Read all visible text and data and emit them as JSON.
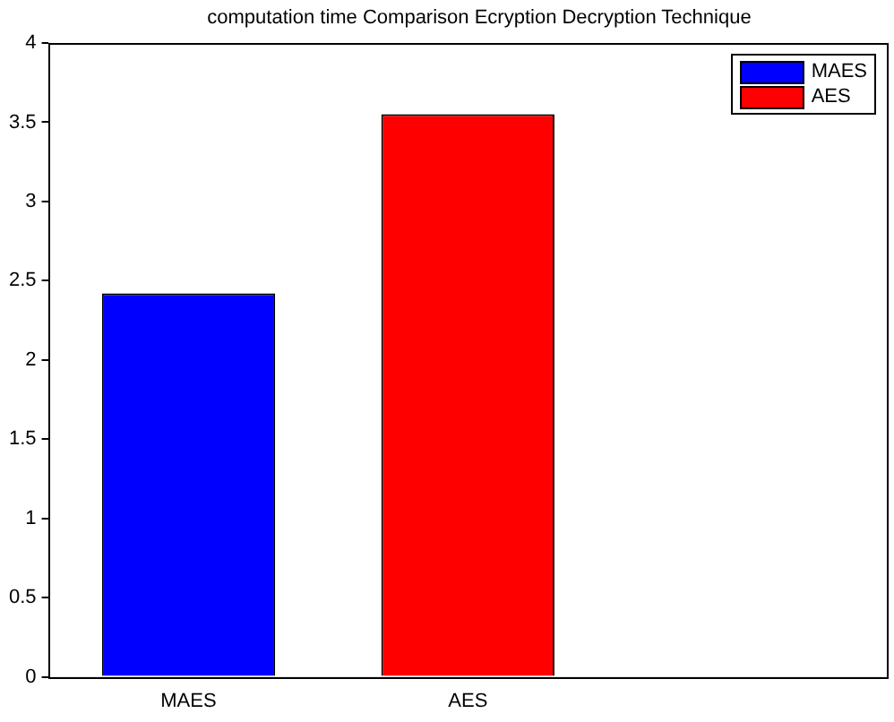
{
  "chart_data": {
    "type": "bar",
    "title": "computation time Comparison Ecryption Decryption Technique",
    "categories": [
      "MAES",
      "AES",
      null
    ],
    "series": [
      {
        "name": "MAES",
        "color": "#0000ff",
        "values": [
          2.42,
          null,
          null
        ]
      },
      {
        "name": "AES",
        "color": "#ff0000",
        "values": [
          null,
          3.55,
          null
        ]
      }
    ],
    "ylim": [
      0,
      4
    ],
    "yticks": [
      0,
      0.5,
      1,
      1.5,
      2,
      2.5,
      3,
      3.5,
      4
    ],
    "grid": false,
    "legend": "top right"
  }
}
